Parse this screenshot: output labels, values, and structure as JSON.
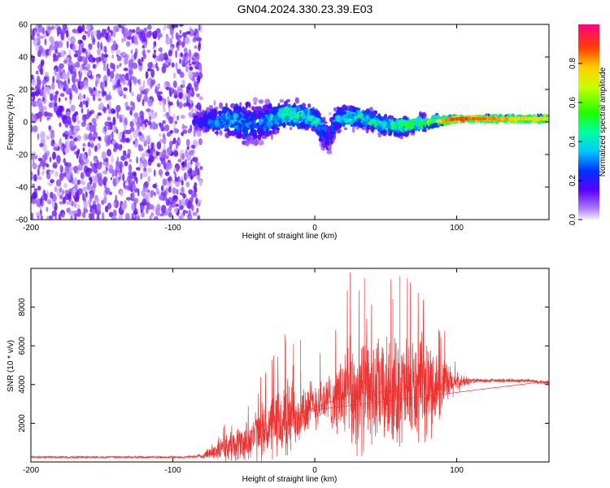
{
  "title": "GN04.2024.330.23.39.E03",
  "chart_data": [
    {
      "type": "heatmap",
      "name": "spectrogram",
      "xlabel": "Height of straight line (km)",
      "ylabel": "Frequency (Hz)",
      "xlim": [
        -200,
        165
      ],
      "ylim": [
        -60,
        60
      ],
      "xticks": [
        -200,
        -100,
        0,
        100
      ],
      "yticks": [
        -60,
        -40,
        -20,
        0,
        20,
        40,
        60
      ],
      "colorbar": {
        "label": "Normalized spectral amplitude",
        "range": [
          0,
          1
        ],
        "ticks": [
          0.0,
          0.2,
          0.4,
          0.6,
          0.8
        ],
        "tick_labels": [
          "0.0",
          "0.2",
          "0.4",
          "0.6",
          "0.8"
        ]
      },
      "noise_region_x": [
        -200,
        -80
      ],
      "ridge": {
        "x": [
          -85,
          -70,
          -60,
          -50,
          -40,
          -30,
          -20,
          -10,
          0,
          5,
          10,
          15,
          20,
          30,
          40,
          50,
          60,
          70,
          80,
          90,
          100,
          110,
          120,
          130,
          140,
          150,
          165
        ],
        "freq": [
          0,
          1,
          2,
          0,
          -1,
          2,
          5,
          4,
          2,
          -4,
          -10,
          1,
          3,
          3,
          1,
          -2,
          -3,
          -1,
          0,
          1,
          2,
          2,
          2,
          2,
          2,
          2,
          2
        ],
        "amplitude": [
          0.2,
          0.35,
          0.4,
          0.35,
          0.3,
          0.45,
          0.55,
          0.5,
          0.5,
          0.4,
          0.2,
          0.4,
          0.45,
          0.5,
          0.55,
          0.5,
          0.6,
          0.6,
          0.65,
          0.85,
          0.95,
          0.9,
          0.88,
          0.85,
          0.82,
          0.8,
          0.8
        ],
        "spread_hz": [
          8,
          12,
          14,
          20,
          18,
          14,
          10,
          12,
          8,
          14,
          16,
          10,
          10,
          8,
          8,
          8,
          8,
          7,
          6,
          3,
          2,
          2,
          2,
          2,
          2,
          2,
          2
        ]
      }
    },
    {
      "type": "line",
      "name": "snr",
      "xlabel": "Height of straight line (km)",
      "ylabel": "SNR (10 * v/v)",
      "xlim": [
        -200,
        165
      ],
      "ylim": [
        0,
        10000
      ],
      "xticks": [
        -200,
        -100,
        0,
        100
      ],
      "yticks": [
        2000,
        4000,
        6000,
        8000
      ],
      "color": "#ee3333",
      "envelope": {
        "x": [
          -200,
          -90,
          -80,
          -70,
          -60,
          -50,
          -40,
          -30,
          -20,
          -10,
          0,
          10,
          15,
          20,
          30,
          40,
          50,
          60,
          70,
          80,
          90,
          100,
          110,
          120,
          130,
          140,
          150,
          165
        ],
        "base": [
          250,
          250,
          300,
          600,
          800,
          1000,
          1500,
          1800,
          2200,
          2600,
          3000,
          3200,
          3300,
          3500,
          3500,
          3600,
          3600,
          3700,
          3700,
          3800,
          3900,
          4100,
          4200,
          4200,
          4200,
          4200,
          4200,
          4100
        ],
        "amp": [
          60,
          70,
          120,
          600,
          900,
          1200,
          1600,
          2000,
          2600,
          1800,
          1500,
          1600,
          2000,
          3000,
          3500,
          3300,
          3200,
          3300,
          3200,
          3000,
          1800,
          600,
          150,
          120,
          120,
          120,
          120,
          120
        ]
      },
      "peak_values": [
        6300,
        6100,
        9800,
        9500,
        9600,
        8400
      ]
    }
  ]
}
